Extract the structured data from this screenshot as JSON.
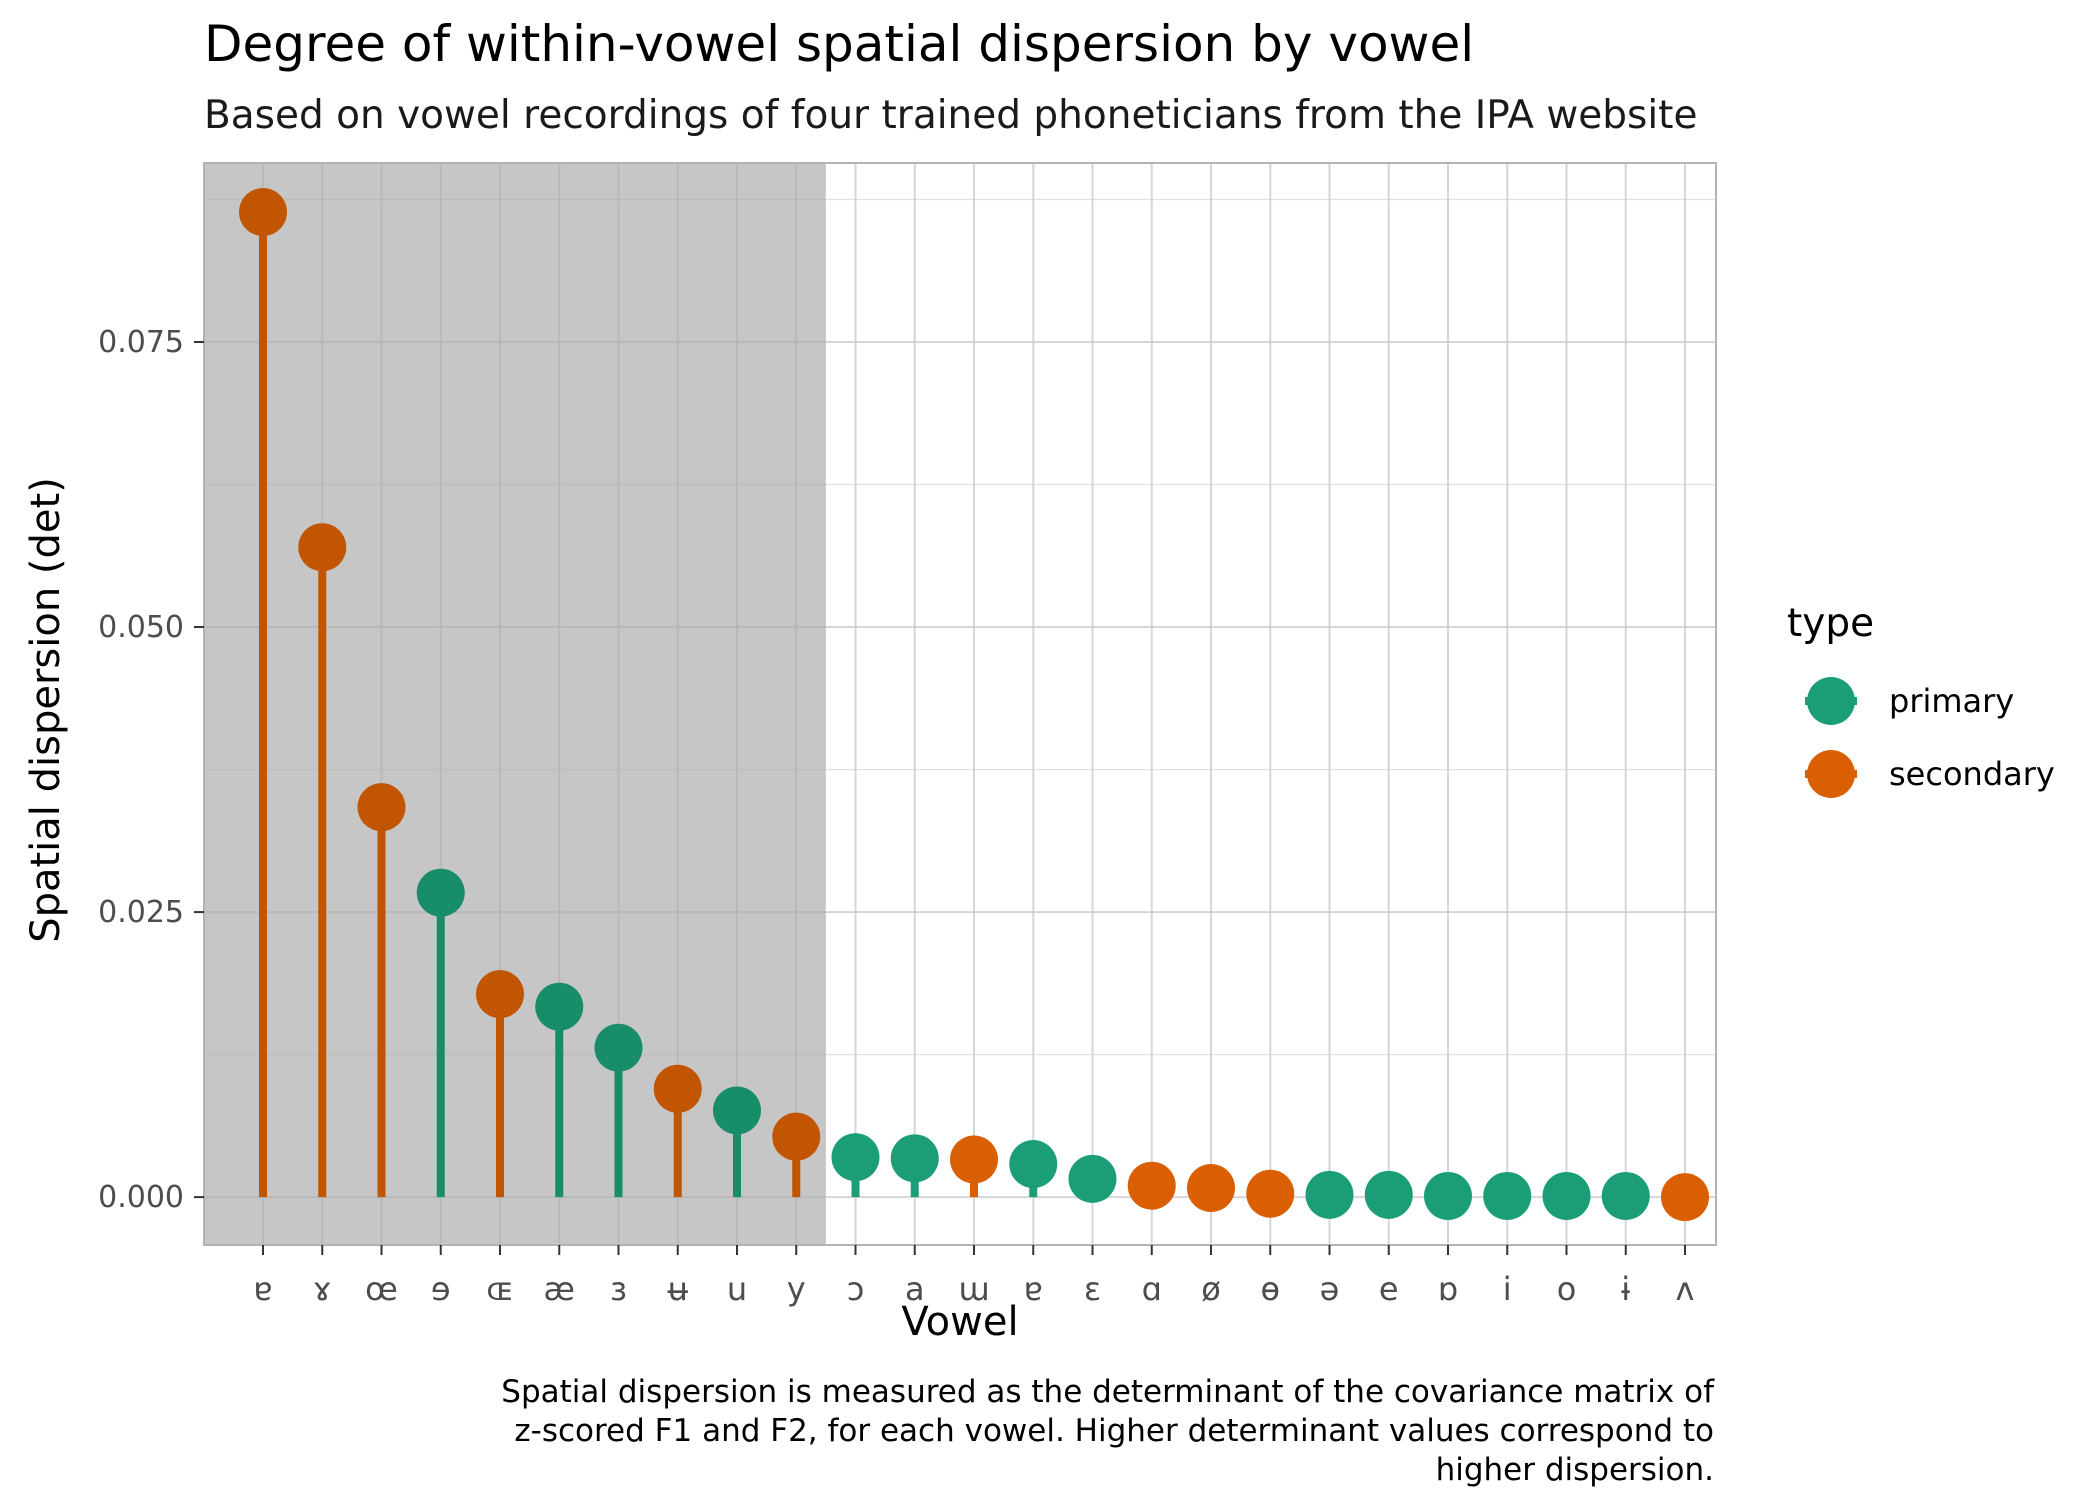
{
  "colors": {
    "primary": "#1b9e77",
    "secondary": "#d95f02",
    "highlight_band": "#dddddd",
    "grid": "#e0e0e0",
    "panel_border": "#b3b3b3",
    "tick_text": "#4d4d4d"
  },
  "chart_data": {
    "type": "lollipop",
    "title": "Degree of within-vowel spatial dispersion by vowel",
    "subtitle": "Based on vowel recordings of four trained phoneticians from the IPA website",
    "xlabel": "Vowel",
    "ylabel": "Spatial dispersion (det)",
    "ylim": [
      -0.0042,
      0.0907
    ],
    "y_ticks": [
      0.0,
      0.025,
      0.05,
      0.075
    ],
    "y_tick_labels": [
      "0.000",
      "0.025",
      "0.050",
      "0.075"
    ],
    "grid": true,
    "highlight": {
      "description": "grey shaded region covering the top 10 vowels",
      "first_index": 0,
      "last_index": 9
    },
    "legend": {
      "title": "type",
      "position": "right",
      "entries": [
        {
          "key": "primary",
          "label": "primary"
        },
        {
          "key": "secondary",
          "label": "secondary"
        }
      ]
    },
    "caption_lines": [
      "Spatial dispersion is measured as the determinant of the covariance matrix of",
      "z-scored F1 and F2, for each vowel. Higher determinant values correspond to",
      "higher dispersion."
    ],
    "categories": [
      "ɐ",
      "ɤ",
      "œ",
      "ɘ",
      "ɶ",
      "æ",
      "ɜ",
      "ʉ",
      "u",
      "y",
      "ɔ",
      "a",
      "ɯ",
      "ɐ",
      "ɛ",
      "ɑ",
      "ø",
      "ɵ",
      "ə",
      "e",
      "ɒ",
      "i",
      "o",
      "ɨ",
      "ʌ"
    ],
    "values": [
      0.0864,
      0.057,
      0.0342,
      0.0267,
      0.0178,
      0.0167,
      0.0131,
      0.0095,
      0.0076,
      0.0053,
      0.0035,
      0.0034,
      0.0033,
      0.0029,
      0.0016,
      0.001,
      0.0008,
      0.0003,
      0.0002,
      0.0002,
      0.0001,
      0.0001,
      0.0001,
      0.0001,
      0.0
    ],
    "types": [
      "secondary",
      "secondary",
      "secondary",
      "primary",
      "secondary",
      "primary",
      "primary",
      "secondary",
      "primary",
      "secondary",
      "primary",
      "primary",
      "secondary",
      "primary",
      "primary",
      "secondary",
      "secondary",
      "secondary",
      "primary",
      "primary",
      "primary",
      "primary",
      "primary",
      "primary",
      "secondary"
    ]
  }
}
